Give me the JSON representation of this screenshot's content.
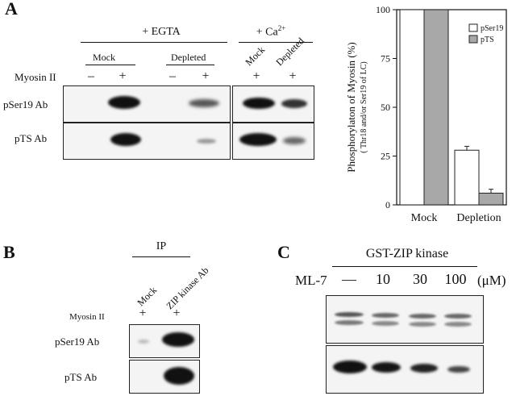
{
  "panel_a": {
    "letter": "A",
    "egta_label": "+ EGTA",
    "ca_label_main": "+ Ca",
    "ca_label_sup": "2+",
    "mock_label": "Mock",
    "depleted_label": "Depleted",
    "row_myosin": "Myosin II",
    "row_pser19": "pSer19 Ab",
    "row_pts": "pTS Ab",
    "signs": [
      "–",
      "+",
      "–",
      "+",
      "+",
      "+"
    ]
  },
  "chart": {
    "ylabel_main": "Phosphorylaton of Myosin (%)",
    "ylabel_sub": "( Thr18 and/or Ser19 of LC)"
  },
  "chart_data": {
    "type": "bar",
    "categories": [
      "Mock",
      "Depletion"
    ],
    "series": [
      {
        "name": "pSer19",
        "values": [
          100,
          28
        ],
        "errors": [
          0,
          2
        ],
        "color": "#ffffff"
      },
      {
        "name": "pTS",
        "values": [
          100,
          6
        ],
        "errors": [
          0,
          2
        ],
        "color": "#a8a8a8"
      }
    ],
    "ylim": [
      0,
      100
    ],
    "yticks": [
      0,
      25,
      50,
      75,
      100
    ],
    "legend": "top-right",
    "grid": false
  },
  "panel_b": {
    "letter": "B",
    "ip_label": "IP",
    "mock_label": "Mock",
    "zip_label": "ZIP kinase Ab",
    "row_myosin": "Myosin II",
    "row_pser19": "pSer19 Ab",
    "row_pts": "pTS Ab",
    "signs": [
      "+",
      "+"
    ]
  },
  "panel_c": {
    "letter": "C",
    "gst_label": "GST-ZIP kinase",
    "ml7_label": "ML-7",
    "doses": [
      "—",
      "10",
      "30",
      "100"
    ],
    "unit": "(μM)"
  }
}
